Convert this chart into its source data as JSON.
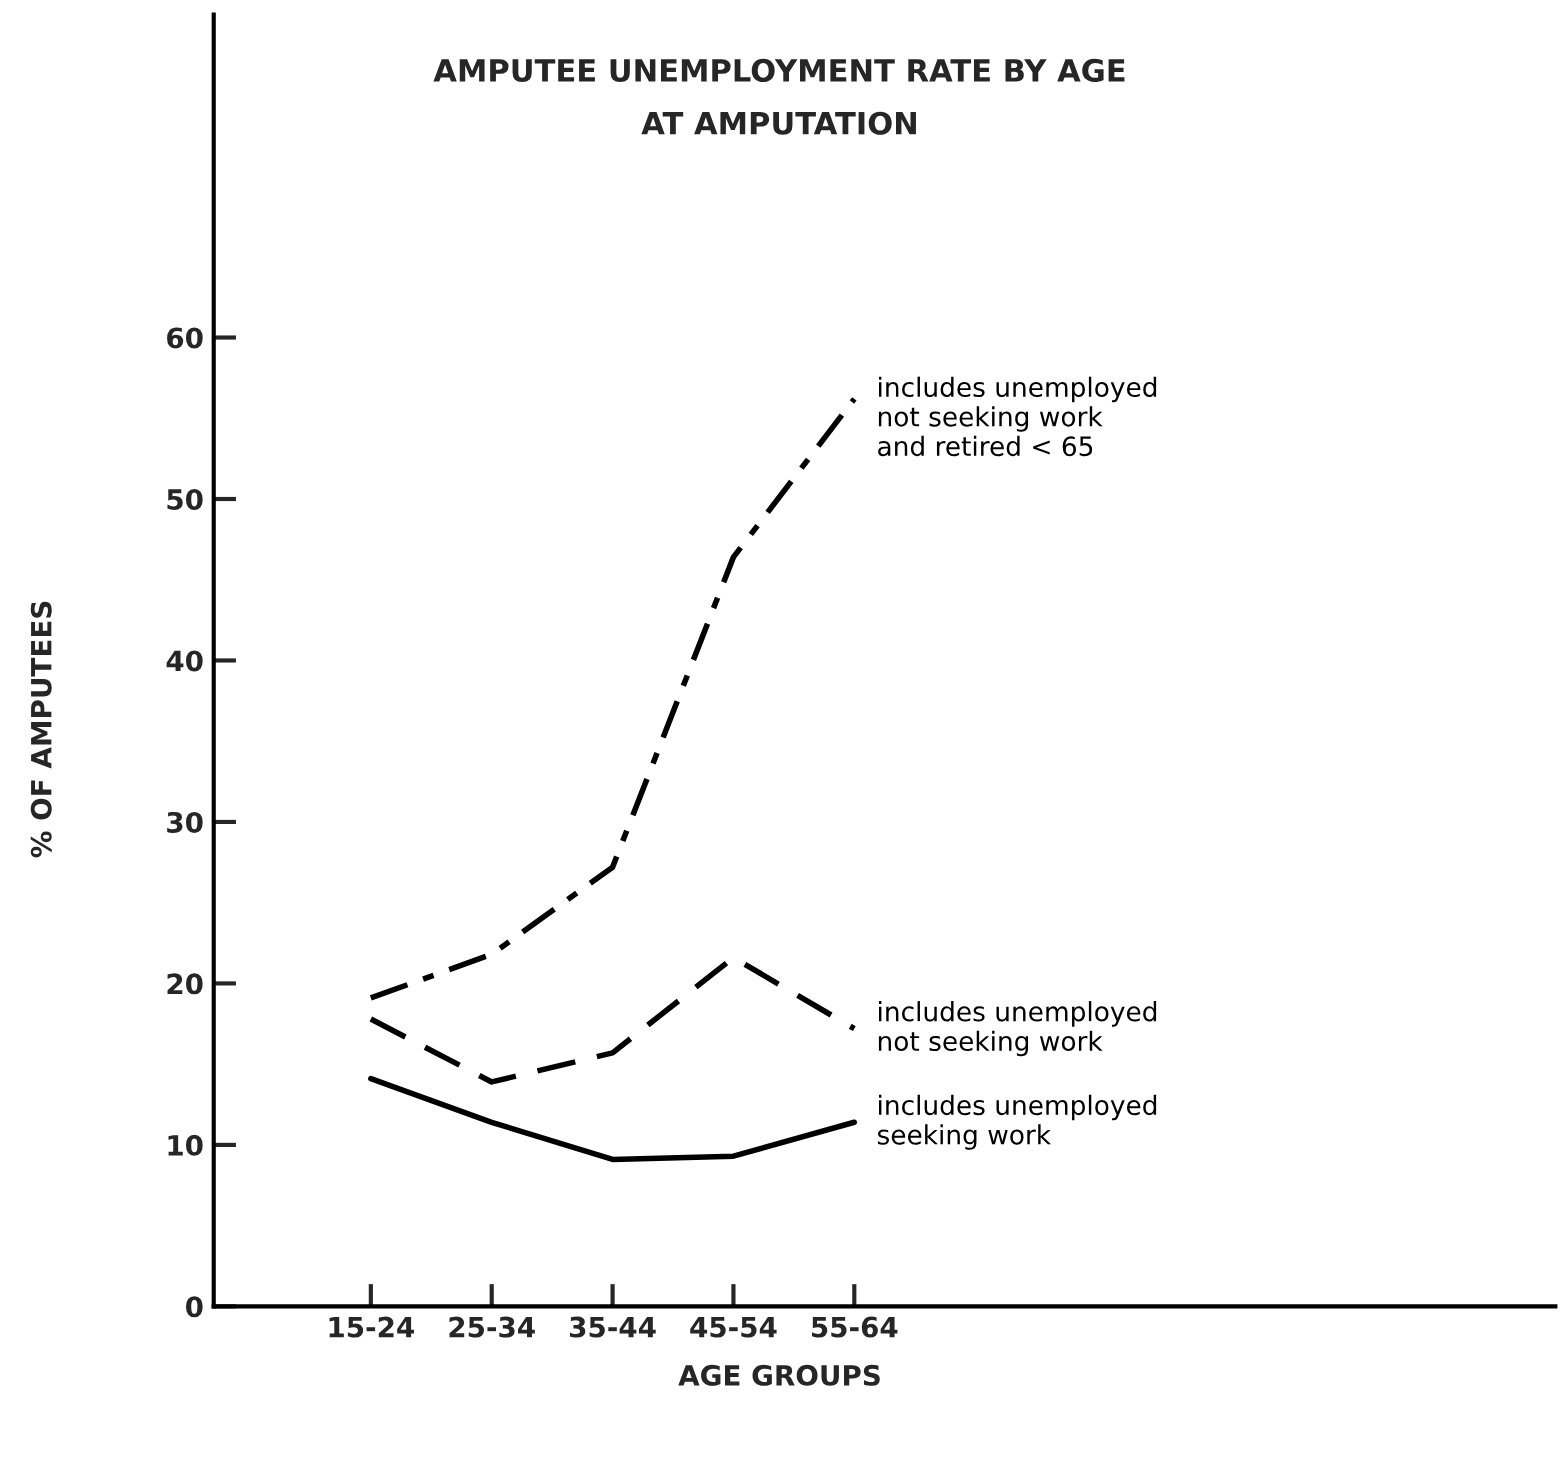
{
  "chart_data": {
    "type": "line",
    "title": "AMPUTEE UNEMPLOYMENT RATE BY AGE\nAT AMPUTATION",
    "xlabel": "AGE GROUPS",
    "ylabel": "% OF AMPUTEES",
    "categories": [
      "15-24",
      "25-34",
      "35-44",
      "45-54",
      "55-64"
    ],
    "series": [
      {
        "name": "includes unemployed\nnot seeking work\nand retired < 65",
        "color": "#000000",
        "line_style": "dashdot",
        "values": [
          19.1,
          21.8,
          27.2,
          46.4,
          56.2
        ]
      },
      {
        "name": "includes unemployed\nnot seeking work",
        "color": "#000000",
        "line_style": "dashed",
        "values": [
          17.8,
          13.9,
          15.7,
          21.6,
          17.2
        ]
      },
      {
        "name": "includes unemployed\nseeking work",
        "color": "#000000",
        "line_style": "solid",
        "values": [
          14.1,
          11.4,
          9.1,
          9.3,
          11.4
        ]
      }
    ],
    "ylim": [
      0,
      80
    ],
    "yticks": [
      0,
      10,
      20,
      30,
      40,
      50,
      60
    ],
    "grid": false,
    "legend": false
  }
}
